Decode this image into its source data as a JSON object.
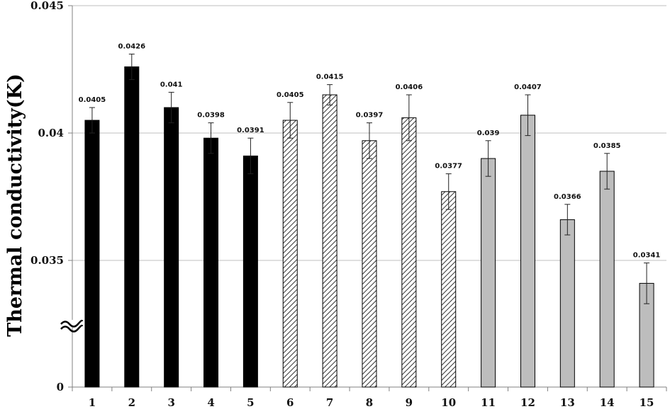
{
  "chart_data": {
    "type": "bar",
    "title": "",
    "xlabel": "",
    "ylabel": "Thermal conductivity(K)",
    "categories": [
      "1",
      "2",
      "3",
      "4",
      "5",
      "6",
      "7",
      "8",
      "9",
      "10",
      "11",
      "12",
      "13",
      "14",
      "15"
    ],
    "values": [
      0.0405,
      0.0426,
      0.041,
      0.0398,
      0.0391,
      0.0405,
      0.0415,
      0.0397,
      0.0406,
      0.0377,
      0.039,
      0.0407,
      0.0366,
      0.0385,
      0.0341
    ],
    "data_labels": [
      "0.0405",
      "0.0426",
      "0.041",
      "0.0398",
      "0.0391",
      "0.0405",
      "0.0415",
      "0.0397",
      "0.0406",
      "0.0377",
      "0.039",
      "0.0407",
      "0.0366",
      "0.0385",
      "0.0341"
    ],
    "error": [
      0.0005,
      0.0005,
      0.0006,
      0.0006,
      0.0007,
      0.0007,
      0.0004,
      0.0007,
      0.0009,
      0.0007,
      0.0007,
      0.0008,
      0.0006,
      0.0007,
      0.0008
    ],
    "fills": [
      "solid",
      "solid",
      "solid",
      "solid",
      "solid",
      "hatched",
      "hatched",
      "hatched",
      "hatched",
      "hatched",
      "gray",
      "gray",
      "gray",
      "gray",
      "gray"
    ],
    "colors": {
      "solid": "#000000",
      "hatched_line": "#333333",
      "gray": "#bdbdbd",
      "grid": "#bfbfbf"
    },
    "y_ticks": [
      "0",
      "0.035",
      "0.04",
      "0.045"
    ],
    "y_tick_values": [
      0,
      0.035,
      0.04,
      0.045
    ],
    "ylim": [
      0.032,
      0.045
    ],
    "axis_break": true,
    "grid": true
  }
}
